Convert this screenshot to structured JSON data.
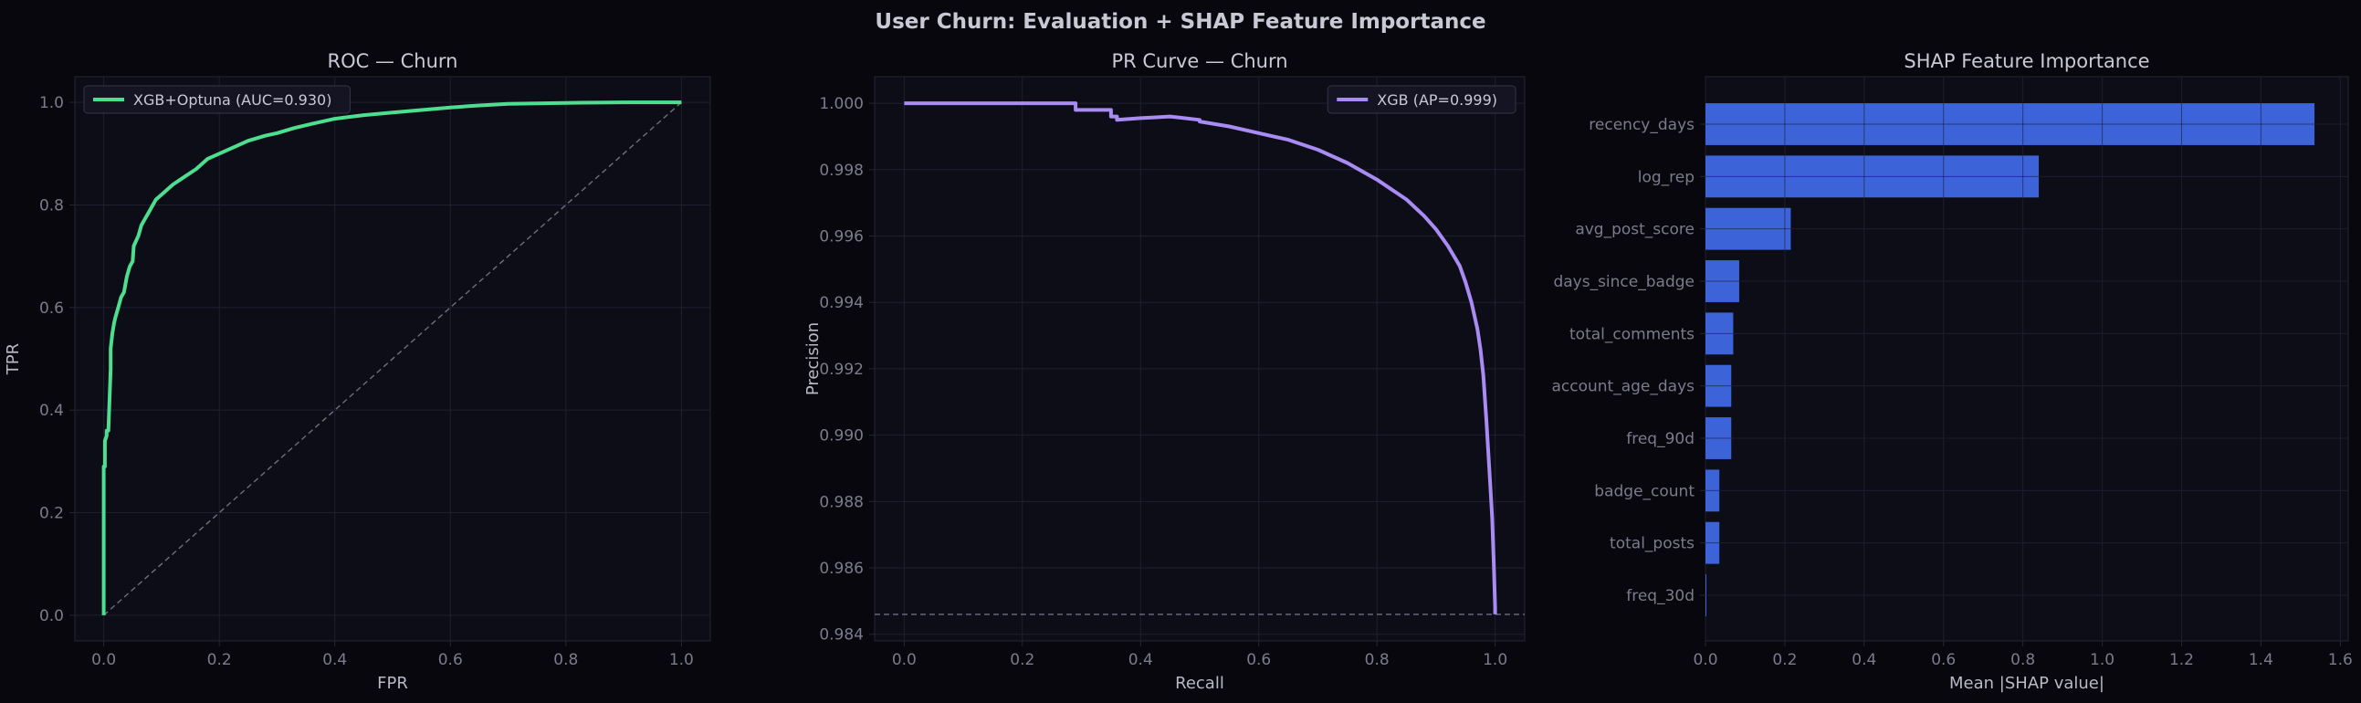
{
  "figure": {
    "suptitle": "User Churn: Evaluation + SHAP Feature Importance"
  },
  "colors": {
    "background": "#07070d",
    "panel_face": "#0d0d18",
    "grid": "#1f1f30",
    "spine": "#262636",
    "roc_line": "#4ede8f",
    "pr_line": "#a98bf4",
    "shap_bar": "#3d63d8",
    "reference_line": "#6e6e80"
  },
  "chart_data": [
    {
      "type": "line",
      "title": "ROC — Churn",
      "xlabel": "FPR",
      "ylabel": "TPR",
      "xlim": [
        -0.05,
        1.05
      ],
      "ylim": [
        -0.05,
        1.05
      ],
      "xticks": [
        "0.0",
        "0.2",
        "0.4",
        "0.6",
        "0.8",
        "1.0"
      ],
      "yticks": [
        "0.0",
        "0.2",
        "0.4",
        "0.6",
        "0.8",
        "1.0"
      ],
      "grid": true,
      "legend_position": "top-left",
      "legend_label": "XGB+Optuna (AUC=0.930)",
      "series": [
        {
          "name": "XGB+Optuna (AUC=0.930)",
          "x": [
            0.0,
            0.0,
            0.002,
            0.002,
            0.005,
            0.005,
            0.008,
            0.012,
            0.012,
            0.015,
            0.018,
            0.02,
            0.025,
            0.03,
            0.035,
            0.04,
            0.045,
            0.05,
            0.052,
            0.06,
            0.065,
            0.07,
            0.08,
            0.09,
            0.1,
            0.11,
            0.12,
            0.14,
            0.16,
            0.18,
            0.2,
            0.22,
            0.25,
            0.28,
            0.3,
            0.33,
            0.36,
            0.4,
            0.45,
            0.5,
            0.55,
            0.6,
            0.65,
            0.7,
            0.8,
            0.9,
            1.0
          ],
          "y": [
            0.0,
            0.29,
            0.29,
            0.34,
            0.35,
            0.36,
            0.36,
            0.48,
            0.52,
            0.55,
            0.57,
            0.58,
            0.6,
            0.62,
            0.63,
            0.66,
            0.68,
            0.69,
            0.72,
            0.74,
            0.76,
            0.77,
            0.79,
            0.81,
            0.82,
            0.83,
            0.84,
            0.855,
            0.87,
            0.89,
            0.9,
            0.91,
            0.925,
            0.935,
            0.94,
            0.95,
            0.958,
            0.968,
            0.975,
            0.98,
            0.985,
            0.99,
            0.994,
            0.997,
            0.999,
            1.0,
            1.0
          ]
        },
        {
          "name": "",
          "x": [
            0.0,
            1.0
          ],
          "y": [
            0.0,
            1.0
          ],
          "style": "dashed"
        }
      ]
    },
    {
      "type": "line",
      "title": "PR Curve — Churn",
      "xlabel": "Recall",
      "ylabel": "Precision",
      "xlim": [
        -0.05,
        1.05
      ],
      "ylim": [
        0.9838,
        1.0008
      ],
      "xticks": [
        "0.0",
        "0.2",
        "0.4",
        "0.6",
        "0.8",
        "1.0"
      ],
      "yticks": [
        "0.984",
        "0.986",
        "0.988",
        "0.990",
        "0.992",
        "0.994",
        "0.996",
        "0.998",
        "1.000"
      ],
      "grid": true,
      "legend_position": "top-right",
      "legend_label": "XGB (AP=0.999)",
      "baseline": 0.9846,
      "series": [
        {
          "name": "XGB (AP=0.999)",
          "x": [
            0.0,
            0.29,
            0.29,
            0.35,
            0.35,
            0.36,
            0.36,
            0.4,
            0.45,
            0.5,
            0.5,
            0.55,
            0.6,
            0.65,
            0.7,
            0.75,
            0.8,
            0.85,
            0.88,
            0.9,
            0.92,
            0.94,
            0.95,
            0.96,
            0.97,
            0.975,
            0.98,
            0.985,
            0.99,
            0.995,
            0.998,
            1.0,
            1.0
          ],
          "y": [
            1.0,
            1.0,
            0.9998,
            0.9998,
            0.9996,
            0.9996,
            0.9995,
            0.99955,
            0.9996,
            0.9995,
            0.99945,
            0.9993,
            0.9991,
            0.9989,
            0.9986,
            0.9982,
            0.9977,
            0.9971,
            0.9966,
            0.9962,
            0.9957,
            0.9951,
            0.9946,
            0.994,
            0.9932,
            0.9926,
            0.9918,
            0.9905,
            0.989,
            0.9875,
            0.986,
            0.9848,
            0.9846
          ]
        }
      ]
    },
    {
      "type": "bar",
      "orientation": "horizontal",
      "title": "SHAP Feature Importance",
      "xlabel": "Mean |SHAP value|",
      "ylabel": "",
      "xlim": [
        0,
        1.62
      ],
      "xticks": [
        "0.0",
        "0.2",
        "0.4",
        "0.6",
        "0.8",
        "1.0",
        "1.2",
        "1.4",
        "1.6"
      ],
      "grid": true,
      "categories": [
        "recency_days",
        "log_rep",
        "avg_post_score",
        "days_since_badge",
        "total_comments",
        "account_age_days",
        "freq_90d",
        "badge_count",
        "total_posts",
        "freq_30d"
      ],
      "values": [
        1.535,
        0.84,
        0.215,
        0.085,
        0.07,
        0.065,
        0.065,
        0.035,
        0.035,
        0.002
      ]
    }
  ]
}
